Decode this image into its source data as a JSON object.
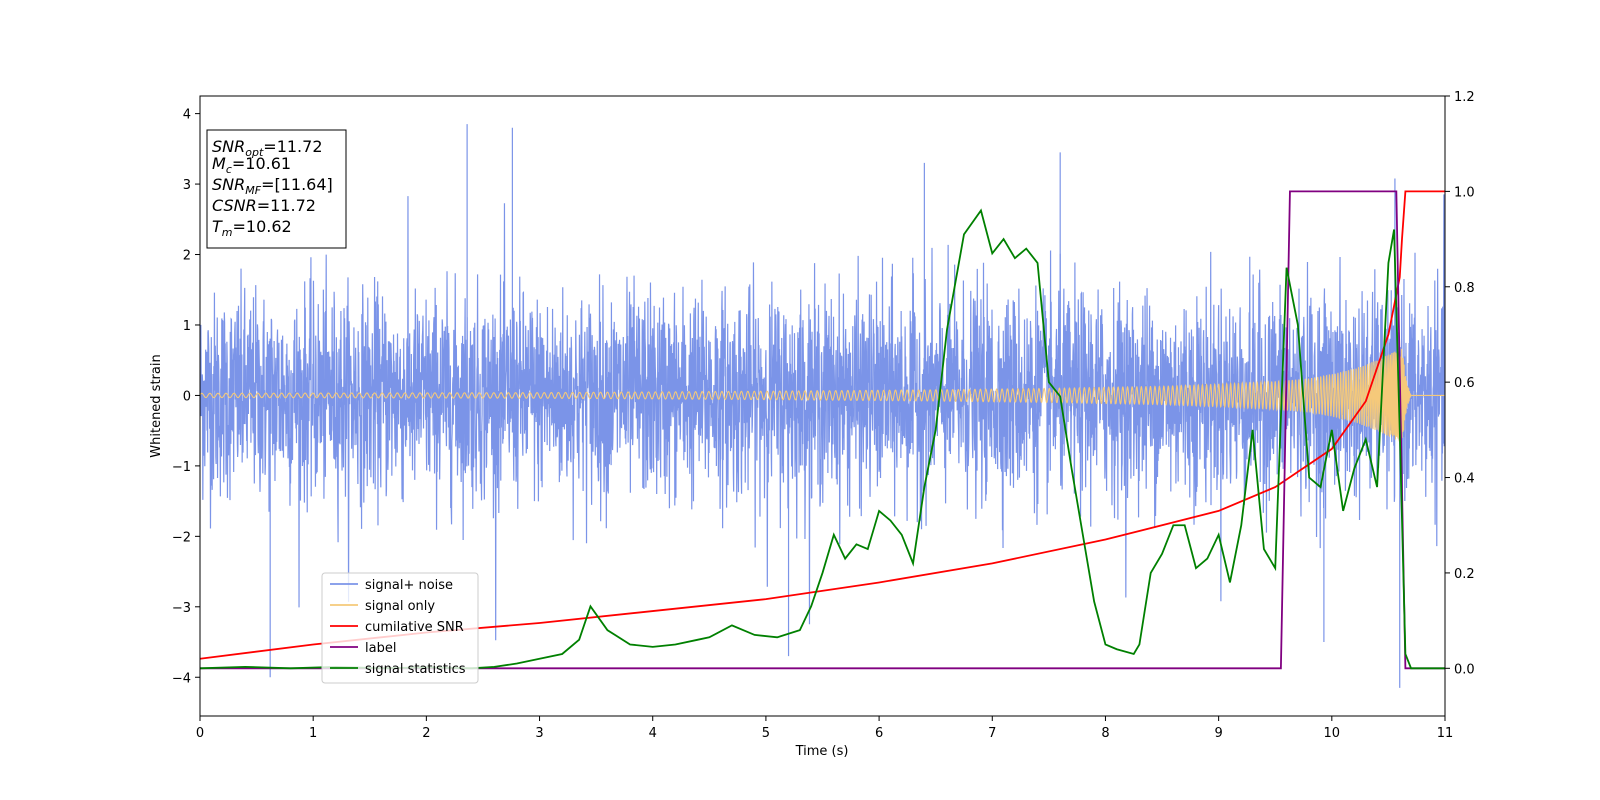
{
  "chart_data": {
    "type": "line",
    "xlabel": "Time (s)",
    "ylabel": "Whitened strain",
    "xlim": [
      0,
      11
    ],
    "ylim": [
      -4.55,
      4.25
    ],
    "y2lim": [
      -0.1,
      1.2
    ],
    "x_ticks": [
      "0",
      "1",
      "2",
      "3",
      "4",
      "5",
      "6",
      "7",
      "8",
      "9",
      "10",
      "11"
    ],
    "y_ticks": [
      "4",
      "3",
      "2",
      "1",
      "0",
      "−1",
      "−2",
      "−3",
      "−4"
    ],
    "y2_ticks": [
      "1.2",
      "1.0",
      "0.8",
      "0.6",
      "0.4",
      "0.2",
      "0.0"
    ],
    "grid": false,
    "legend_position": "lower-left",
    "info_box": {
      "lines": [
        {
          "base": "SNR",
          "sub": "opt",
          "value": "=11.72"
        },
        {
          "base": "M",
          "sub": "c",
          "value": "=10.61"
        },
        {
          "base": "SNR",
          "sub": "MF",
          "value": "=[11.64]"
        },
        {
          "base": "CSNR",
          "sub": "",
          "value": "=11.72"
        },
        {
          "base": "T",
          "sub": "m",
          "value": "=10.62"
        }
      ]
    },
    "series": [
      {
        "name": "signal+ noise",
        "axis": "left",
        "color": "#7b94e8",
        "noise_std": 1.0,
        "amplitude_range": [
          -4.15,
          3.85
        ],
        "notable_peaks": [
          [
            2.36,
            3.85
          ],
          [
            2.76,
            3.8
          ],
          [
            7.6,
            3.45
          ],
          [
            6.4,
            3.3
          ]
        ],
        "notable_dips": [
          [
            0.62,
            -4.0
          ],
          [
            5.2,
            -3.7
          ],
          [
            10.6,
            -4.15
          ],
          [
            9.93,
            -3.5
          ]
        ]
      },
      {
        "name": "signal only",
        "axis": "left",
        "color": "#f5c97a",
        "envelope": [
          [
            0,
            0.03
          ],
          [
            3,
            0.04
          ],
          [
            5,
            0.06
          ],
          [
            6.5,
            0.08
          ],
          [
            7.5,
            0.1
          ],
          [
            8.5,
            0.13
          ],
          [
            9,
            0.16
          ],
          [
            9.5,
            0.2
          ],
          [
            9.8,
            0.24
          ],
          [
            10,
            0.3
          ],
          [
            10.2,
            0.38
          ],
          [
            10.4,
            0.5
          ],
          [
            10.55,
            0.62
          ],
          [
            10.62,
            0.68
          ],
          [
            10.66,
            0.2
          ],
          [
            10.7,
            0.0
          ],
          [
            11,
            0.0
          ]
        ]
      },
      {
        "name": "cumilative SNR",
        "axis": "right",
        "color": "#ff0000",
        "points": [
          [
            0,
            0.02
          ],
          [
            1,
            0.05
          ],
          [
            2,
            0.075
          ],
          [
            3,
            0.095
          ],
          [
            4,
            0.12
          ],
          [
            5,
            0.145
          ],
          [
            6,
            0.18
          ],
          [
            7,
            0.22
          ],
          [
            8,
            0.27
          ],
          [
            9,
            0.33
          ],
          [
            9.5,
            0.38
          ],
          [
            10,
            0.46
          ],
          [
            10.3,
            0.56
          ],
          [
            10.5,
            0.7
          ],
          [
            10.6,
            0.82
          ],
          [
            10.62,
            0.9
          ],
          [
            10.65,
            1.0
          ],
          [
            11,
            1.0
          ]
        ]
      },
      {
        "name": "label",
        "axis": "right",
        "color": "#800080",
        "points": [
          [
            0,
            0.0
          ],
          [
            9.55,
            0.0
          ],
          [
            9.63,
            1.0
          ],
          [
            10.57,
            1.0
          ],
          [
            10.65,
            0.0
          ],
          [
            11,
            0.0
          ]
        ]
      },
      {
        "name": "signal statistics",
        "axis": "right",
        "color": "#008000",
        "points": [
          [
            0,
            0.0
          ],
          [
            0.4,
            0.003
          ],
          [
            0.8,
            0.0
          ],
          [
            1.2,
            0.003
          ],
          [
            1.6,
            0.0
          ],
          [
            2.0,
            0.002
          ],
          [
            2.4,
            0.0
          ],
          [
            2.6,
            0.003
          ],
          [
            2.8,
            0.01
          ],
          [
            3.0,
            0.02
          ],
          [
            3.2,
            0.03
          ],
          [
            3.35,
            0.06
          ],
          [
            3.45,
            0.13
          ],
          [
            3.6,
            0.08
          ],
          [
            3.8,
            0.05
          ],
          [
            4.0,
            0.045
          ],
          [
            4.2,
            0.05
          ],
          [
            4.4,
            0.06
          ],
          [
            4.5,
            0.065
          ],
          [
            4.7,
            0.09
          ],
          [
            4.9,
            0.07
          ],
          [
            5.1,
            0.065
          ],
          [
            5.3,
            0.08
          ],
          [
            5.4,
            0.13
          ],
          [
            5.5,
            0.2
          ],
          [
            5.6,
            0.28
          ],
          [
            5.7,
            0.23
          ],
          [
            5.8,
            0.26
          ],
          [
            5.9,
            0.25
          ],
          [
            6.0,
            0.33
          ],
          [
            6.1,
            0.31
          ],
          [
            6.2,
            0.28
          ],
          [
            6.3,
            0.22
          ],
          [
            6.4,
            0.38
          ],
          [
            6.5,
            0.5
          ],
          [
            6.6,
            0.71
          ],
          [
            6.75,
            0.91
          ],
          [
            6.9,
            0.96
          ],
          [
            7.0,
            0.87
          ],
          [
            7.1,
            0.9
          ],
          [
            7.2,
            0.86
          ],
          [
            7.3,
            0.88
          ],
          [
            7.4,
            0.85
          ],
          [
            7.5,
            0.6
          ],
          [
            7.6,
            0.57
          ],
          [
            7.7,
            0.42
          ],
          [
            7.8,
            0.28
          ],
          [
            7.9,
            0.14
          ],
          [
            8.0,
            0.05
          ],
          [
            8.1,
            0.04
          ],
          [
            8.25,
            0.03
          ],
          [
            8.3,
            0.05
          ],
          [
            8.4,
            0.2
          ],
          [
            8.5,
            0.24
          ],
          [
            8.6,
            0.3
          ],
          [
            8.7,
            0.3
          ],
          [
            8.8,
            0.21
          ],
          [
            8.9,
            0.23
          ],
          [
            9.0,
            0.28
          ],
          [
            9.1,
            0.18
          ],
          [
            9.2,
            0.3
          ],
          [
            9.3,
            0.5
          ],
          [
            9.4,
            0.25
          ],
          [
            9.5,
            0.21
          ],
          [
            9.6,
            0.84
          ],
          [
            9.7,
            0.72
          ],
          [
            9.8,
            0.4
          ],
          [
            9.9,
            0.38
          ],
          [
            10.0,
            0.5
          ],
          [
            10.1,
            0.33
          ],
          [
            10.2,
            0.42
          ],
          [
            10.3,
            0.48
          ],
          [
            10.4,
            0.38
          ],
          [
            10.5,
            0.85
          ],
          [
            10.55,
            0.92
          ],
          [
            10.6,
            0.5
          ],
          [
            10.65,
            0.03
          ],
          [
            10.7,
            0.0
          ],
          [
            11,
            0.0
          ]
        ]
      }
    ]
  }
}
